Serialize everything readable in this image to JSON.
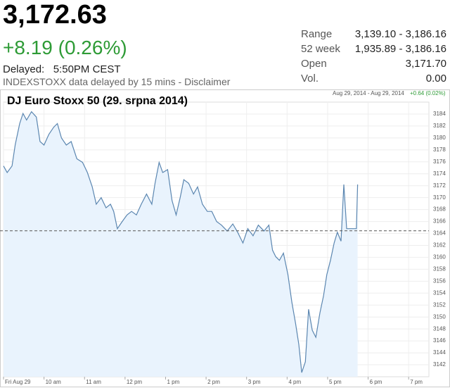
{
  "header": {
    "price": "3,172.63",
    "change": "+8.19 (0.26%)",
    "delayed_label": "Delayed:",
    "delayed_time": "5:50PM CEST",
    "note": "INDEXSTOXX data delayed by 15 mins - Disclaimer"
  },
  "stats": [
    [
      "Range",
      "3,139.10 - 3,186.16"
    ],
    [
      "52 week",
      "1,935.89 - 3,186.16"
    ],
    [
      "Open",
      "3,171.70"
    ],
    [
      "Vol.",
      "0.00"
    ]
  ],
  "chart_data": {
    "type": "line",
    "title": "DJ Euro Stoxx 50 (29. srpna 2014)",
    "range_label": "Aug 29, 2014 - Aug 29, 2014",
    "range_change": "+0.64 (0.02%)",
    "x": [
      9.0,
      9.09,
      9.21,
      9.29,
      9.4,
      9.48,
      9.57,
      9.69,
      9.81,
      9.9,
      10.0,
      10.12,
      10.24,
      10.33,
      10.43,
      10.55,
      10.67,
      10.81,
      10.95,
      11.07,
      11.19,
      11.29,
      11.41,
      11.53,
      11.64,
      11.72,
      11.81,
      11.93,
      12.05,
      12.16,
      12.28,
      12.4,
      12.53,
      12.66,
      12.74,
      12.84,
      12.93,
      13.05,
      13.16,
      13.26,
      13.36,
      13.45,
      13.57,
      13.69,
      13.79,
      13.91,
      14.03,
      14.14,
      14.26,
      14.38,
      14.52,
      14.66,
      14.78,
      14.91,
      15.03,
      15.16,
      15.29,
      15.43,
      15.55,
      15.64,
      15.72,
      15.81,
      15.91,
      16.02,
      16.12,
      16.21,
      16.29,
      16.36,
      16.45,
      16.53,
      16.62,
      16.71,
      16.81,
      16.9,
      16.98,
      17.07,
      17.16,
      17.24,
      17.33,
      17.4,
      17.47,
      17.62,
      17.71,
      17.74
    ],
    "series": [
      {
        "name": "DJ Euro Stoxx 50",
        "color": "#5b86b0",
        "values": [
          3175.3,
          3174.2,
          3175.3,
          3178.9,
          3182.4,
          3184.1,
          3183.0,
          3184.4,
          3183.5,
          3179.4,
          3178.8,
          3180.6,
          3181.8,
          3182.4,
          3180.0,
          3178.8,
          3179.4,
          3176.5,
          3175.9,
          3174.2,
          3171.8,
          3168.9,
          3170.0,
          3168.3,
          3168.9,
          3167.7,
          3164.8,
          3166.0,
          3167.1,
          3167.7,
          3167.1,
          3168.9,
          3170.6,
          3168.9,
          3172.4,
          3175.9,
          3174.2,
          3174.7,
          3169.5,
          3167.1,
          3170.0,
          3173.0,
          3172.4,
          3170.6,
          3171.8,
          3168.9,
          3167.7,
          3167.7,
          3166.0,
          3165.4,
          3164.4,
          3165.6,
          3164.2,
          3162.4,
          3164.8,
          3163.6,
          3165.4,
          3164.4,
          3165.4,
          3161.2,
          3160.1,
          3159.5,
          3160.7,
          3157.1,
          3152.4,
          3148.9,
          3145.4,
          3140.7,
          3142.5,
          3151.3,
          3147.8,
          3146.6,
          3150.7,
          3153.6,
          3157.1,
          3159.5,
          3162.4,
          3164.2,
          3162.7,
          3172.2,
          3164.8,
          3164.8,
          3164.8,
          3172.2
        ]
      }
    ],
    "prev_close": 3164.44,
    "xlim": [
      9,
      19.5
    ],
    "xticks": [
      {
        "value": 9,
        "label": "Fri Aug 29"
      },
      {
        "value": 10,
        "label": "10 am"
      },
      {
        "value": 11,
        "label": "11 am"
      },
      {
        "value": 12,
        "label": "12 pm"
      },
      {
        "value": 13,
        "label": "1 pm"
      },
      {
        "value": 14,
        "label": "2 pm"
      },
      {
        "value": 15,
        "label": "3 pm"
      },
      {
        "value": 16,
        "label": "4 pm"
      },
      {
        "value": 17,
        "label": "5 pm"
      },
      {
        "value": 18,
        "label": "6 pm"
      },
      {
        "value": 19,
        "label": "7 pm"
      }
    ],
    "ylim": [
      3140,
      3186
    ],
    "yticks": [
      3142,
      3144,
      3146,
      3148,
      3150,
      3152,
      3154,
      3156,
      3158,
      3160,
      3162,
      3164,
      3166,
      3168,
      3170,
      3172,
      3174,
      3176,
      3178,
      3180,
      3182,
      3184
    ],
    "grid": true,
    "fill": "#e9f3fd"
  }
}
